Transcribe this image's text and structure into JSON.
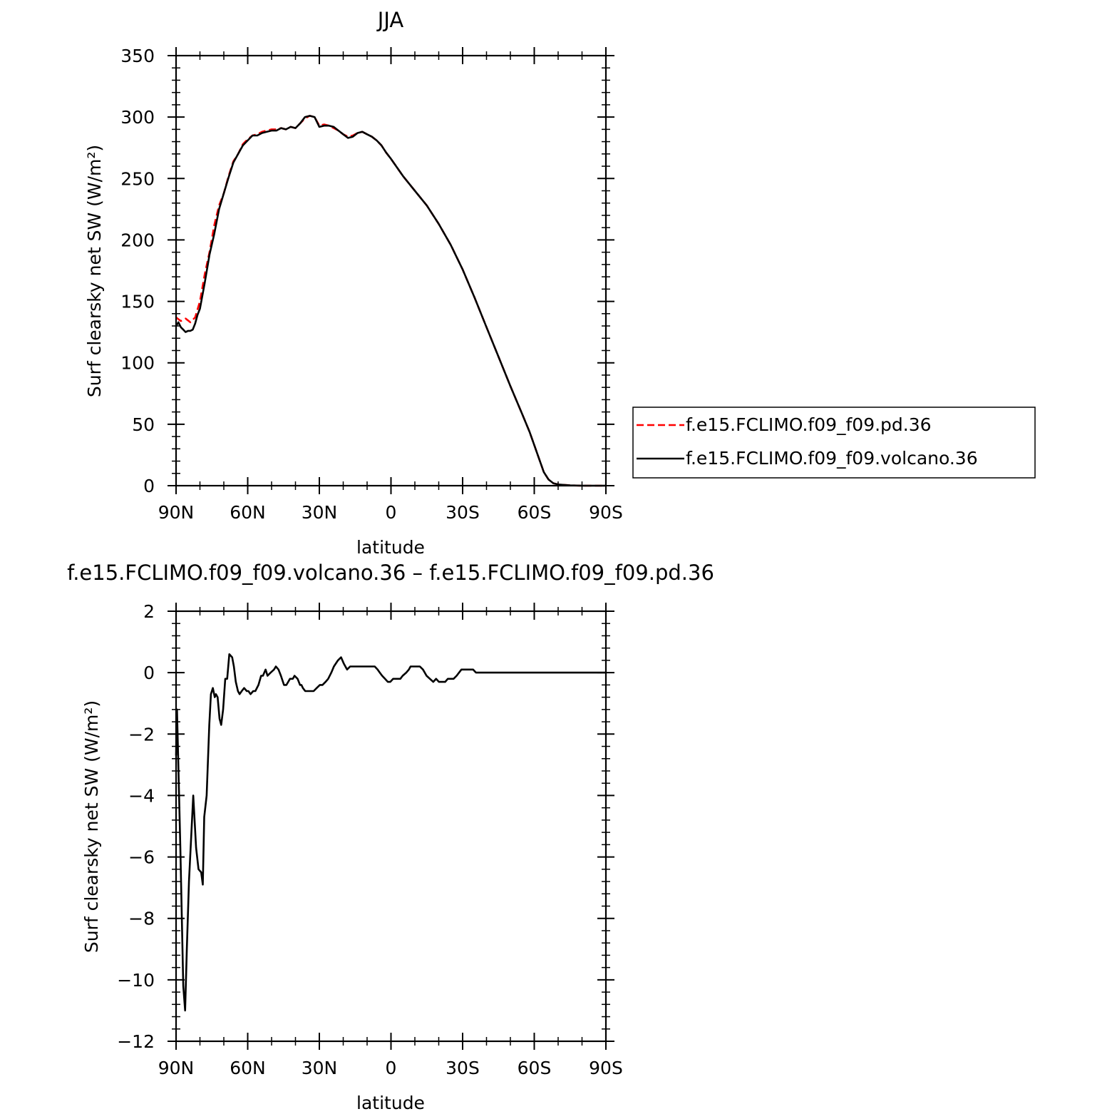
{
  "chart_data": [
    {
      "type": "line",
      "title": "JJA",
      "xlabel": "latitude",
      "ylabel": "Surf clearsky net SW (W/m²)",
      "xlim": [
        90,
        -90
      ],
      "ylim": [
        0,
        350
      ],
      "x_tick_values": [
        90,
        60,
        30,
        0,
        -30,
        -60,
        -90
      ],
      "x_tick_labels": [
        "90N",
        "60N",
        "30N",
        "0",
        "30S",
        "60S",
        "90S"
      ],
      "y_tick_values": [
        0,
        50,
        100,
        150,
        200,
        250,
        300,
        350
      ],
      "y_tick_labels": [
        "0",
        "50",
        "100",
        "150",
        "200",
        "250",
        "300",
        "350"
      ],
      "legend_position": "right",
      "series": [
        {
          "name": "f.e15.FCLIMO.f09_f09.pd.36",
          "color": "#ff0000",
          "dash": "dashed",
          "x": [
            90,
            88,
            86,
            84,
            82,
            80,
            78,
            76,
            74,
            72,
            70,
            68,
            66,
            64,
            62,
            60,
            58,
            56,
            54,
            52,
            50,
            48,
            46,
            44,
            42,
            40,
            38,
            36,
            34,
            32,
            30,
            28,
            26,
            24,
            22,
            20,
            18,
            16,
            14,
            12,
            10,
            8,
            6,
            4,
            2,
            0,
            -5,
            -10,
            -15,
            -20,
            -25,
            -30,
            -35,
            -40,
            -45,
            -50,
            -55,
            -58,
            -60,
            -62,
            -64,
            -66,
            -68,
            -70,
            -75,
            -80,
            -85,
            -90
          ],
          "y": [
            137,
            134,
            136,
            133,
            137,
            150,
            172,
            190,
            212,
            228,
            238,
            252,
            264,
            270,
            278,
            282,
            285,
            286,
            288,
            289,
            290,
            290,
            291,
            290,
            292,
            291,
            295,
            299,
            301,
            300,
            293,
            294,
            293,
            291,
            289,
            286,
            284,
            285,
            287,
            288,
            286,
            284,
            281,
            277,
            271,
            266,
            252,
            240,
            228,
            213,
            196,
            176,
            153,
            129,
            105,
            81,
            58,
            44,
            33,
            22,
            11,
            5,
            2,
            1,
            0.3,
            0,
            0,
            0
          ]
        },
        {
          "name": "f.e15.FCLIMO.f09_f09.volcano.36",
          "color": "#000000",
          "dash": "solid",
          "x": [
            90,
            89,
            88,
            87,
            86,
            85,
            84,
            83,
            82,
            81,
            80,
            78,
            76,
            74,
            72,
            70,
            68,
            66,
            64,
            62,
            60,
            58,
            56,
            54,
            52,
            50,
            48,
            46,
            44,
            42,
            40,
            38,
            36,
            34,
            32,
            30,
            28,
            26,
            24,
            22,
            20,
            18,
            16,
            14,
            12,
            10,
            8,
            6,
            4,
            2,
            0,
            -5,
            -10,
            -15,
            -20,
            -25,
            -30,
            -35,
            -40,
            -45,
            -50,
            -55,
            -58,
            -60,
            -62,
            -64,
            -66,
            -68,
            -70,
            -75,
            -80,
            -85,
            -90
          ],
          "y": [
            130,
            133,
            129,
            127,
            125,
            126,
            126,
            127,
            132,
            139,
            144,
            165,
            188,
            205,
            225,
            238,
            251,
            263,
            270,
            277,
            281,
            285,
            285,
            287,
            288,
            289,
            289,
            291,
            290,
            292,
            291,
            295,
            300,
            301,
            300,
            292,
            293,
            293,
            292,
            289,
            286,
            283,
            284,
            287,
            288,
            286,
            284,
            281,
            277,
            271,
            266,
            252,
            240,
            228,
            213,
            196,
            176,
            153,
            129,
            105,
            81,
            58,
            44,
            33,
            22,
            11,
            5,
            2,
            1,
            0.3,
            0,
            0,
            0
          ]
        }
      ]
    },
    {
      "type": "line",
      "title": "f.e15.FCLIMO.f09_f09.volcano.36 – f.e15.FCLIMO.f09_f09.pd.36",
      "xlabel": "latitude",
      "ylabel": "Surf clearsky net SW (W/m²)",
      "xlim": [
        90,
        -90
      ],
      "ylim": [
        -12,
        2
      ],
      "x_tick_values": [
        90,
        60,
        30,
        0,
        -30,
        -60,
        -90
      ],
      "x_tick_labels": [
        "90N",
        "60N",
        "30N",
        "0",
        "30S",
        "60S",
        "90S"
      ],
      "y_tick_values": [
        -12,
        -10,
        -8,
        -6,
        -4,
        -2,
        0,
        2
      ],
      "y_tick_labels": [
        "−12",
        "−10",
        "−8",
        "−6",
        "−4",
        "−2",
        "0",
        "2"
      ],
      "series": [
        {
          "color": "#000000",
          "dash": "solid",
          "x": [
            90,
            89.6,
            88.2,
            87,
            86.2,
            85.5,
            84.6,
            83.7,
            82.8,
            81.6,
            80.6,
            79.5,
            78.8,
            78.2,
            77.2,
            76.1,
            75.4,
            74.6,
            73.8,
            73.3,
            72.6,
            71.8,
            71.1,
            70.3,
            69.4,
            68.6,
            67.7,
            66.5,
            65.8,
            65.0,
            64.1,
            63.4,
            62.5,
            61.5,
            60.4,
            59.7,
            58.8,
            57.7,
            56.8,
            55.5,
            54.4,
            53.6,
            52.5,
            51.7,
            50.4,
            49.0,
            48.2,
            47.1,
            46.1,
            44.8,
            43.8,
            42.3,
            41.1,
            40.4,
            39.1,
            38.1,
            37.5,
            36.9,
            35.9,
            35.0,
            33.9,
            33.0,
            32.4,
            31.1,
            29.8,
            28.7,
            27.4,
            26.3,
            25.0,
            23.9,
            22.2,
            20.9,
            19.8,
            18.4,
            17.1,
            15.8,
            14.5,
            13.3,
            12.1,
            11.0,
            10.2,
            9.3,
            7.7,
            6.8,
            5.6,
            4.7,
            3.7,
            2.5,
            1.3,
            0.3,
            -0.9,
            -2.5,
            -3.9,
            -4.9,
            -6.4,
            -7.5,
            -8.2,
            -9.3,
            -10.6,
            -12.1,
            -13.4,
            -14.9,
            -16.3,
            -17.7,
            -18.9,
            -20.1,
            -20.8,
            -21.7,
            -22.7,
            -23.8,
            -25.2,
            -26.2,
            -27.5,
            -28.5,
            -29.5,
            -30.4,
            -31.4,
            -32.4,
            -33.4,
            -34.4,
            -35.6,
            -36.8,
            -37.9,
            -38.5,
            -39.8,
            -41.0,
            -42.2,
            -43.3,
            -44.3,
            -45.4,
            -47.4,
            -48.6,
            -49.6,
            -50.8,
            -51.5,
            -52.8,
            -53.8,
            -54.6,
            -55.8,
            -57.6,
            -59.0,
            -60.3,
            -61.8,
            -63.5,
            -65.5,
            -67.1,
            -69.2,
            -70.8,
            -73.1,
            -75.3,
            -77.1,
            -79.0,
            -90
          ],
          "y": [
            -2.7,
            -1.2,
            -5.7,
            -10.2,
            -11,
            -9,
            -6.8,
            -5.4,
            -4,
            -5.7,
            -6.4,
            -6.5,
            -6.9,
            -4.7,
            -4,
            -1.7,
            -0.7,
            -0.5,
            -0.8,
            -0.7,
            -0.8,
            -1.5,
            -1.7,
            -1.2,
            -0.2,
            -0.2,
            0.6,
            0.5,
            0.2,
            -0.3,
            -0.6,
            -0.7,
            -0.6,
            -0.5,
            -0.6,
            -0.6,
            -0.7,
            -0.6,
            -0.6,
            -0.4,
            -0.1,
            -0.1,
            0.1,
            -0.1,
            -0.0,
            0.1,
            0.2,
            0.1,
            -0.1,
            -0.4,
            -0.4,
            -0.2,
            -0.2,
            -0.1,
            -0.2,
            -0.4,
            -0.4,
            -0.5,
            -0.6,
            -0.6,
            -0.6,
            -0.6,
            -0.6,
            -0.5,
            -0.4,
            -0.4,
            -0.3,
            -0.2,
            0.0,
            0.2,
            0.4,
            0.5,
            0.3,
            0.1,
            0.2,
            0.2,
            0.2,
            0.2,
            0.2,
            0.2,
            0.2,
            0.2,
            0.2,
            0.2,
            0.1,
            0.0,
            -0.1,
            -0.2,
            -0.3,
            -0.3,
            -0.2,
            -0.2,
            -0.2,
            -0.1,
            0.0,
            0.1,
            0.2,
            0.2,
            0.2,
            0.2,
            0.1,
            -0.1,
            -0.2,
            -0.3,
            -0.2,
            -0.3,
            -0.3,
            -0.3,
            -0.3,
            -0.2,
            -0.2,
            -0.2,
            -0.1,
            0.0,
            0.1,
            0.1,
            0.1,
            0.1,
            0.1,
            0.1,
            0.0,
            0.0,
            0.0,
            -0.0,
            -0.0,
            -0.0,
            -0.0,
            0.0,
            -0.0,
            0.0,
            0.0,
            0.0,
            0.0,
            0.0,
            0.0,
            0.0,
            0.0,
            0.0,
            0.0,
            0.0,
            0.0,
            0.0,
            0.0,
            0.0,
            0.0,
            0.0,
            0.0,
            0.0,
            0.0,
            0.0,
            0.0,
            0.0,
            0.0
          ]
        }
      ]
    }
  ]
}
